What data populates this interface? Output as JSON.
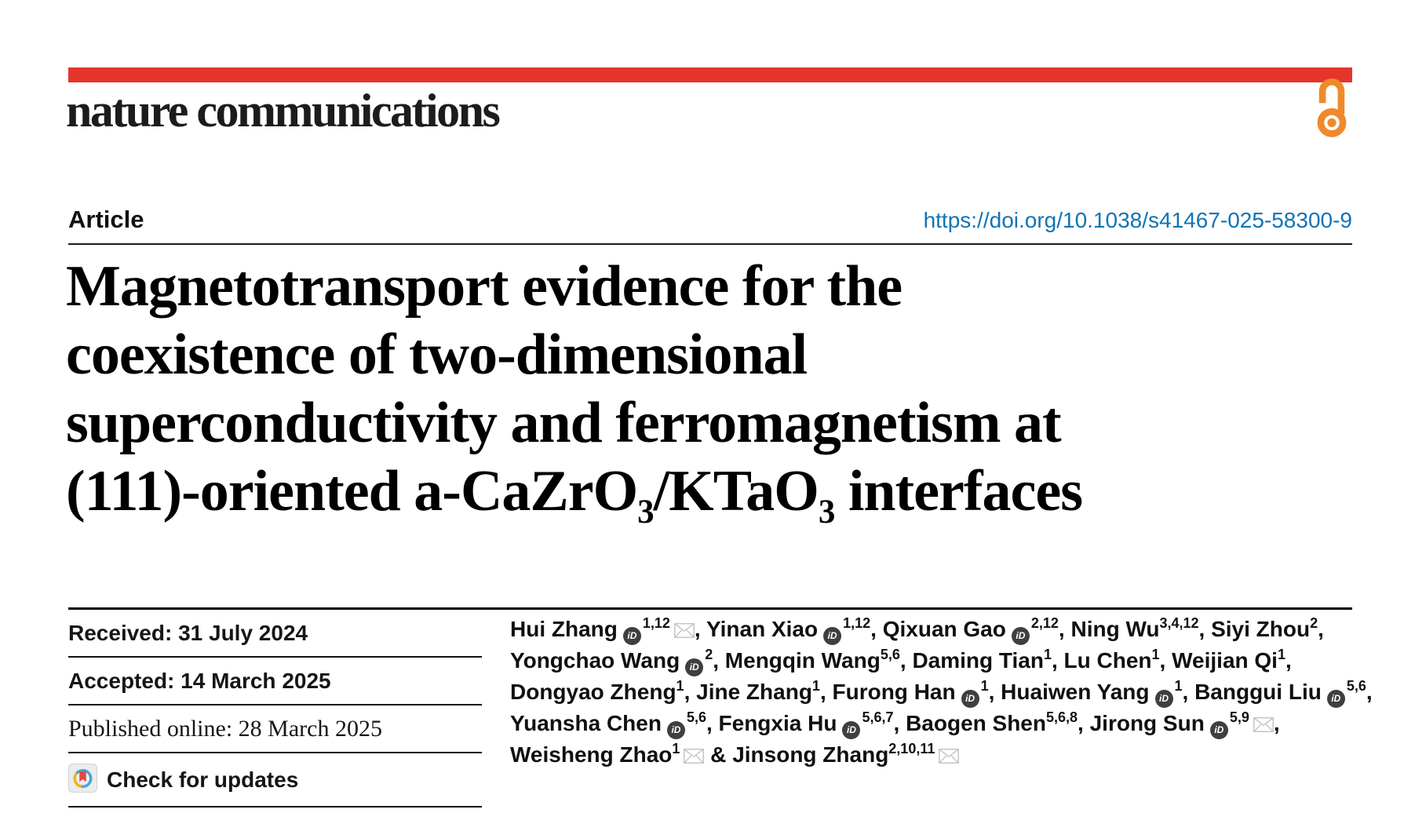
{
  "masthead": {
    "brand": "nature communications",
    "bar_color": "#e5352b",
    "open_access_color": "#ef8a2b"
  },
  "article": {
    "label": "Article",
    "doi": "https://doi.org/10.1038/s41467-025-58300-9",
    "doi_color": "#1173b4"
  },
  "title": {
    "lines": [
      [
        {
          "t": "Magnetotransport evidence for the"
        }
      ],
      [
        {
          "t": "coexistence of two-dimensional"
        }
      ],
      [
        {
          "t": "superconductivity and ferromagnetism at"
        }
      ],
      [
        {
          "t": "(111)-oriented a-CaZrO"
        },
        {
          "sub": "3"
        },
        {
          "t": "/KTaO"
        },
        {
          "sub": "3"
        },
        {
          "t": " interfaces"
        }
      ]
    ]
  },
  "history": [
    {
      "key": "received",
      "label": "Received: 31 July 2024",
      "serif": false
    },
    {
      "key": "accepted",
      "label": "Accepted: 14 March 2025",
      "serif": false
    },
    {
      "key": "published",
      "label": "Published online: 28 March 2025",
      "serif": true
    }
  ],
  "check_updates_label": "Check for updates",
  "icons": {
    "open_access": "open-access-icon",
    "orcid": "orcid-icon",
    "orcid_glyph": "iD",
    "email": "envelope-icon",
    "check_updates": "check-updates-icon"
  },
  "authors_lines": [
    [
      {
        "n": "Hui Zhang",
        "orcid": true,
        "sup": "1,12",
        "env": true,
        "trail": ", "
      },
      {
        "n": "Yinan Xiao",
        "orcid": true,
        "sup": "1,12",
        "env": false,
        "trail": ", "
      },
      {
        "n": "Qixuan Gao",
        "orcid": true,
        "sup": "2,12",
        "env": false,
        "trail": ", "
      },
      {
        "n": "Ning Wu",
        "orcid": false,
        "sup": "3,4,12",
        "env": false,
        "trail": ", "
      },
      {
        "n": "Siyi Zhou",
        "orcid": false,
        "sup": "2",
        "env": false,
        "trail": ","
      }
    ],
    [
      {
        "n": "Yongchao Wang",
        "orcid": true,
        "sup": "2",
        "env": false,
        "trail": ", "
      },
      {
        "n": "Mengqin Wang",
        "orcid": false,
        "sup": "5,6",
        "env": false,
        "trail": ", "
      },
      {
        "n": "Daming Tian",
        "orcid": false,
        "sup": "1",
        "env": false,
        "trail": ", "
      },
      {
        "n": "Lu Chen",
        "orcid": false,
        "sup": "1",
        "env": false,
        "trail": ", "
      },
      {
        "n": "Weijian Qi",
        "orcid": false,
        "sup": "1",
        "env": false,
        "trail": ","
      }
    ],
    [
      {
        "n": "Dongyao Zheng",
        "orcid": false,
        "sup": "1",
        "env": false,
        "trail": ", "
      },
      {
        "n": "Jine Zhang",
        "orcid": false,
        "sup": "1",
        "env": false,
        "trail": ", "
      },
      {
        "n": "Furong Han",
        "orcid": true,
        "sup": "1",
        "env": false,
        "trail": ", "
      },
      {
        "n": "Huaiwen Yang",
        "orcid": true,
        "sup": "1",
        "env": false,
        "trail": ", "
      },
      {
        "n": "Banggui Liu",
        "orcid": true,
        "sup": "5,6",
        "env": false,
        "trail": ","
      }
    ],
    [
      {
        "n": "Yuansha Chen",
        "orcid": true,
        "sup": "5,6",
        "env": false,
        "trail": ", "
      },
      {
        "n": "Fengxia Hu",
        "orcid": true,
        "sup": "5,6,7",
        "env": false,
        "trail": ", "
      },
      {
        "n": "Baogen Shen",
        "orcid": false,
        "sup": "5,6,8",
        "env": false,
        "trail": ", "
      },
      {
        "n": "Jirong Sun",
        "orcid": true,
        "sup": "5,9",
        "env": true,
        "trail": ","
      }
    ],
    [
      {
        "n": "Weisheng Zhao",
        "orcid": false,
        "sup": "1",
        "env": true,
        "trail": " & "
      },
      {
        "n": "Jinsong Zhang",
        "orcid": false,
        "sup": "2,10,11",
        "env": true,
        "trail": ""
      }
    ]
  ]
}
